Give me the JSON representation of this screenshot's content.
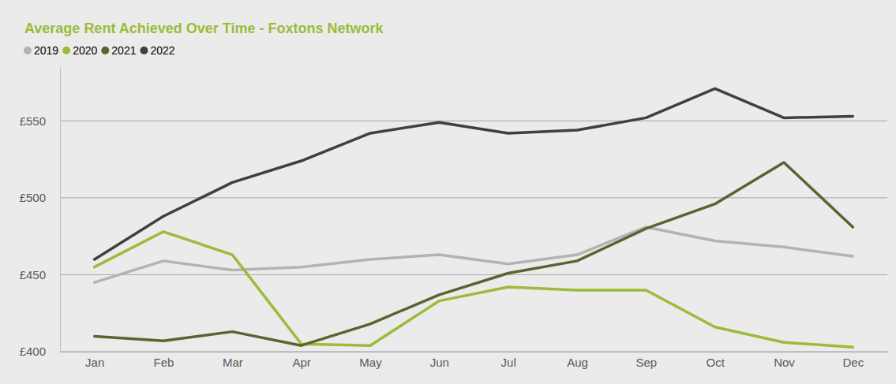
{
  "chart_data": {
    "type": "line",
    "title": "Average Rent Achieved Over Time - Foxtons Network",
    "categories": [
      "Jan",
      "Feb",
      "Mar",
      "Apr",
      "May",
      "Jun",
      "Jul",
      "Aug",
      "Sep",
      "Oct",
      "Nov",
      "Dec"
    ],
    "series": [
      {
        "name": "2019",
        "color": "#b3b3b3",
        "values": [
          445,
          459,
          453,
          455,
          460,
          463,
          457,
          463,
          481,
          472,
          468,
          462
        ]
      },
      {
        "name": "2020",
        "color": "#9bbb3b",
        "values": [
          455,
          478,
          463,
          405,
          404,
          433,
          442,
          440,
          440,
          416,
          406,
          403
        ]
      },
      {
        "name": "2021",
        "color": "#5a6430",
        "values": [
          410,
          407,
          413,
          404,
          418,
          437,
          451,
          459,
          480,
          496,
          523,
          481
        ]
      },
      {
        "name": "2022",
        "color": "#404040",
        "values": [
          460,
          488,
          510,
          524,
          542,
          549,
          542,
          544,
          552,
          571,
          552,
          553
        ]
      }
    ],
    "ylim": [
      400,
      585
    ],
    "yticks": [
      {
        "value": 400,
        "label": "£400"
      },
      {
        "value": 450,
        "label": "£450"
      },
      {
        "value": 500,
        "label": "£500"
      },
      {
        "value": 550,
        "label": "£550"
      }
    ],
    "grid": true,
    "legend": "top-left"
  }
}
